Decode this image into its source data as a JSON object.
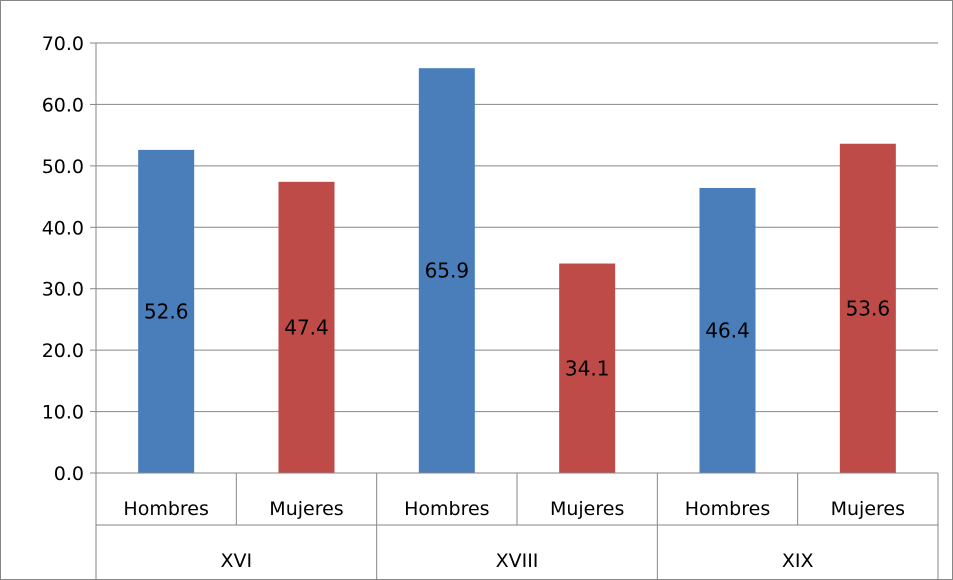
{
  "chart_data": {
    "type": "bar",
    "title": "",
    "xlabel": "",
    "ylabel": "",
    "ylim": [
      0,
      70
    ],
    "y_ticks": [
      "0.0",
      "10.0",
      "20.0",
      "30.0",
      "40.0",
      "50.0",
      "60.0",
      "70.0"
    ],
    "grid": true,
    "legend": "none",
    "groups": [
      "XVI",
      "XVIII",
      "XIX"
    ],
    "categories": [
      "Hombres",
      "Mujeres",
      "Hombres",
      "Mujeres",
      "Hombres",
      "Mujeres"
    ],
    "values": [
      52.6,
      47.4,
      65.9,
      34.1,
      46.4,
      53.6
    ],
    "data_labels": [
      "52.6",
      "47.4",
      "65.9",
      "34.1",
      "46.4",
      "53.6"
    ],
    "colors": [
      "#4a7ebb",
      "#be4b48",
      "#4a7ebb",
      "#be4b48",
      "#4a7ebb",
      "#be4b48"
    ]
  }
}
